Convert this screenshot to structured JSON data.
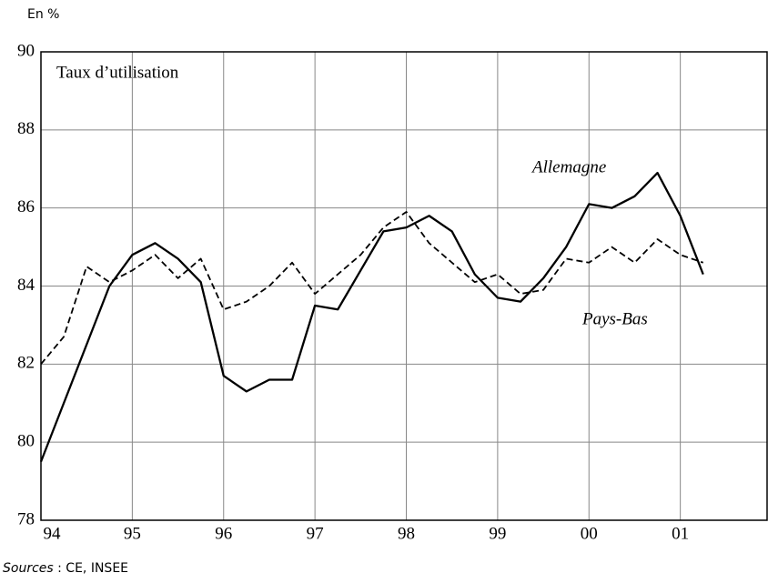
{
  "chart_data": {
    "type": "line",
    "unit_label": "En %",
    "title": "Taux d’utilisation",
    "x": [
      1994,
      1994.25,
      1994.5,
      1994.75,
      1995,
      1995.25,
      1995.5,
      1995.75,
      1996,
      1996.25,
      1996.5,
      1996.75,
      1997,
      1997.25,
      1997.5,
      1997.75,
      1998,
      1998.25,
      1998.5,
      1998.75,
      1999,
      1999.25,
      1999.5,
      1999.75,
      2000,
      2000.25,
      2000.5,
      2000.75,
      2001,
      2001.25
    ],
    "series": [
      {
        "name": "Allemagne",
        "color": "#000000",
        "dashed": false,
        "values": [
          79.5,
          81.0,
          82.5,
          84.0,
          84.8,
          85.1,
          84.7,
          84.1,
          81.7,
          81.3,
          81.6,
          81.6,
          83.5,
          83.4,
          84.4,
          85.4,
          85.5,
          85.8,
          85.4,
          84.3,
          83.7,
          83.6,
          84.2,
          85.0,
          86.1,
          86.0,
          86.3,
          86.9,
          85.8,
          84.3
        ]
      },
      {
        "name": "Pays-Bas",
        "color": "#000000",
        "dashed": true,
        "values": [
          82.0,
          82.7,
          84.5,
          84.1,
          84.4,
          84.8,
          84.2,
          84.7,
          83.4,
          83.6,
          84.0,
          84.6,
          83.8,
          84.3,
          84.8,
          85.5,
          85.9,
          85.1,
          84.6,
          84.1,
          84.3,
          83.8,
          83.9,
          84.7,
          84.6,
          85.0,
          84.6,
          85.2,
          84.8,
          84.6
        ]
      }
    ],
    "xlim": [
      1994,
      2001.95
    ],
    "xticks": [
      {
        "value": 1994,
        "label": "94"
      },
      {
        "value": 1995,
        "label": "95"
      },
      {
        "value": 1996,
        "label": "96"
      },
      {
        "value": 1997,
        "label": "97"
      },
      {
        "value": 1998,
        "label": "98"
      },
      {
        "value": 1999,
        "label": "99"
      },
      {
        "value": 2000,
        "label": "00"
      },
      {
        "value": 2001,
        "label": "01"
      }
    ],
    "ylim": [
      78,
      90
    ],
    "yticks": [
      78,
      80,
      82,
      84,
      86,
      88,
      90
    ],
    "grid": true,
    "source_label": "Sources",
    "source_text": ": CE, INSEE"
  }
}
